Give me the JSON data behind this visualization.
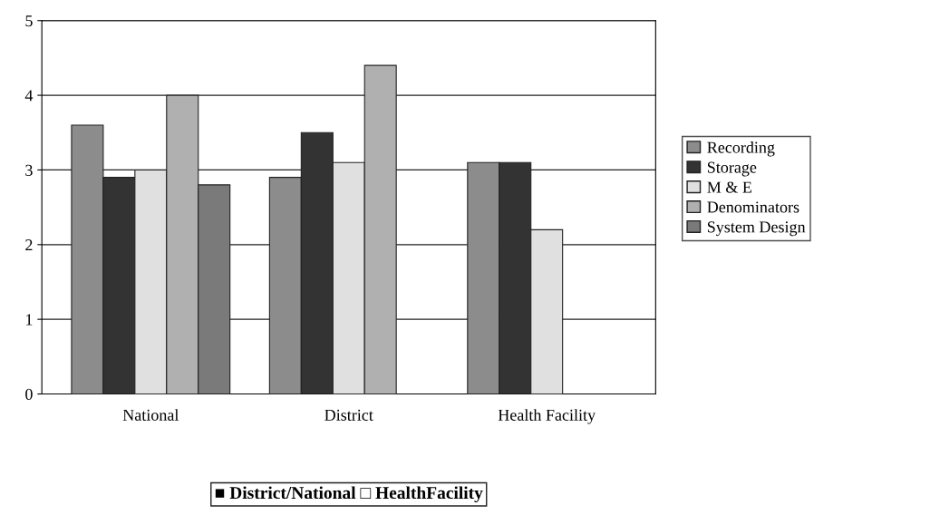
{
  "chart_data": {
    "type": "bar",
    "categories": [
      "National",
      "District",
      "Health Facility"
    ],
    "series": [
      {
        "name": "Recording",
        "color": "#8c8c8c",
        "values": [
          3.6,
          2.9,
          3.1
        ]
      },
      {
        "name": "Storage",
        "color": "#333333",
        "values": [
          2.9,
          3.5,
          3.1
        ]
      },
      {
        "name": "M & E",
        "color": "#e0e0e0",
        "values": [
          3.0,
          3.1,
          2.2
        ]
      },
      {
        "name": "Denominators",
        "color": "#b0b0b0",
        "values": [
          4.0,
          4.4,
          null
        ]
      },
      {
        "name": "System Design",
        "color": "#7a7a7a",
        "values": [
          2.8,
          null,
          null
        ]
      }
    ],
    "ylim": [
      0,
      5
    ],
    "yticks": [
      0,
      1,
      2,
      3,
      4,
      5
    ],
    "grid": "y",
    "legend": "right",
    "annotations": [
      "■ District/National □ HealthFacility"
    ]
  }
}
